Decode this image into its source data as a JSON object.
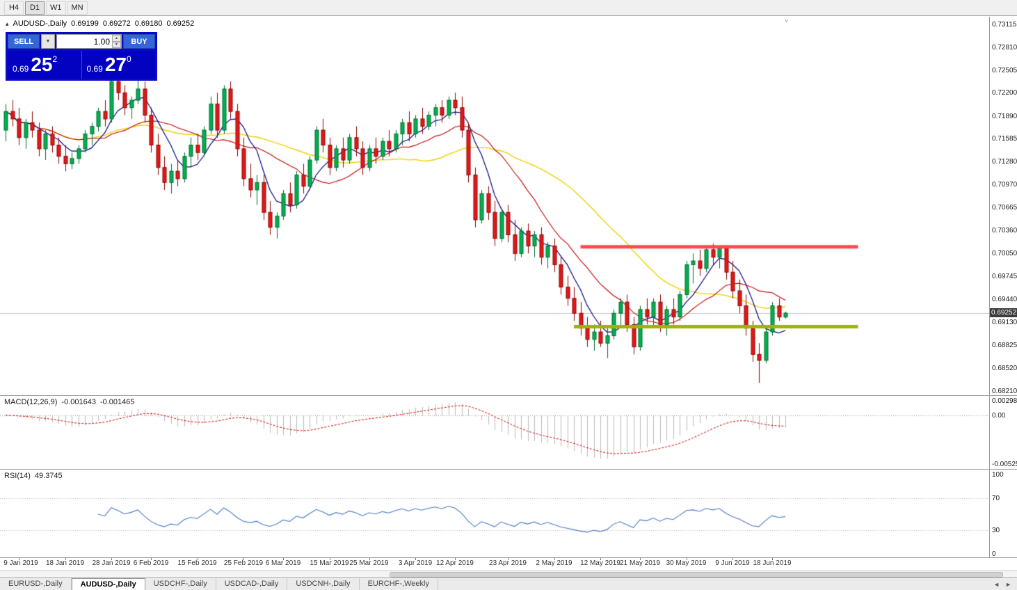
{
  "toolbar": {
    "timeframes": [
      {
        "label": "H4",
        "active": false
      },
      {
        "label": "D1",
        "active": true
      },
      {
        "label": "W1",
        "active": false
      },
      {
        "label": "MN",
        "active": false
      }
    ]
  },
  "chart_header": {
    "symbol_title": "AUDUSD-,Daily",
    "ohlc": {
      "open": "0.69199",
      "high": "0.69272",
      "low": "0.69180",
      "close": "0.69252"
    }
  },
  "trade_panel": {
    "sell_label": "SELL",
    "buy_label": "BUY",
    "volume": "1.00",
    "sell_price": {
      "small": "0.69",
      "big": "25",
      "sup": "2"
    },
    "buy_price": {
      "small": "0.69",
      "big": "27",
      "sup": "0"
    }
  },
  "price_scale": {
    "labels": [
      "0.73115",
      "0.72810",
      "0.72505",
      "0.72200",
      "0.71890",
      "0.71585",
      "0.71280",
      "0.70970",
      "0.70665",
      "0.70360",
      "0.70050",
      "0.69745",
      "0.69440",
      "0.69130",
      "0.68825",
      "0.68520",
      "0.68210"
    ],
    "current_price": "0.69252"
  },
  "indicators": {
    "macd": {
      "label": "MACD(12,26,9)",
      "value_main": "-0.001643",
      "value_signal": "-0.001465",
      "scale_top": "0.002984",
      "scale_zero": "0.00",
      "scale_bottom": "-0.005256"
    },
    "rsi": {
      "label": "RSI(14)",
      "value": "49.3745",
      "scale": [
        "100",
        "70",
        "30",
        "0"
      ]
    }
  },
  "bottom_tabs": {
    "tabs": [
      {
        "label": "EURUSD-,Daily",
        "active": false
      },
      {
        "label": "AUDUSD-,Daily",
        "active": true
      },
      {
        "label": "USDCHF-,Daily",
        "active": false
      },
      {
        "label": "USDCAD-,Daily",
        "active": false
      },
      {
        "label": "USDCNH-,Daily",
        "active": false
      },
      {
        "label": "EURCHF-,Weekly",
        "active": false
      }
    ]
  },
  "icons": {
    "collapse_arrow": "▴",
    "dropdown_arrow": "▼",
    "spinner_up": "▲",
    "spinner_down": "▼",
    "scroll_caret": "˅",
    "tab_scroll_left": "◄",
    "tab_scroll_right": "►"
  },
  "chart_data": {
    "type": "candlestick",
    "symbol": "AUDUSD",
    "timeframe": "Daily",
    "price_range": {
      "top": 0.73115,
      "bottom": 0.6821
    },
    "colors": {
      "up_fill": "#00b050",
      "up_border": "#006b2d",
      "down_fill": "#e31818",
      "down_border": "#8f0000"
    },
    "bid_line": {
      "price": 0.69252,
      "color": "#c6c6c6"
    },
    "hlines": [
      {
        "name": "resistance-line",
        "price": 0.7014,
        "color": "#ff4a4a",
        "width": 5,
        "from_index": 87,
        "to_index": 129
      },
      {
        "name": "support-line",
        "price": 0.6907,
        "color": "#9fb400",
        "width": 5,
        "from_index": 86,
        "to_index": 129
      }
    ],
    "moving_averages": [
      {
        "period": 30,
        "color": "#efcf00",
        "width": 1.4
      },
      {
        "period": 14,
        "color": "#c00000",
        "width": 1.1
      },
      {
        "period": 6,
        "color": "#000080",
        "width": 1.2
      }
    ],
    "macd": {
      "fast": 12,
      "slow": 26,
      "signal": 9,
      "histogram_color": "#b9b9b9",
      "signal_color": "#cf0000"
    },
    "rsi": {
      "period": 14,
      "levels": [
        70,
        30
      ],
      "color": "#4577c2"
    },
    "dates": [
      {
        "text": "9 Jan 2019",
        "index": 2
      },
      {
        "text": "18 Jan 2019",
        "index": 9
      },
      {
        "text": "28 Jan 2019",
        "index": 16
      },
      {
        "text": "6 Feb 2019",
        "index": 22
      },
      {
        "text": "15 Feb 2019",
        "index": 29
      },
      {
        "text": "25 Feb 2019",
        "index": 36
      },
      {
        "text": "6 Mar 2019",
        "index": 42
      },
      {
        "text": "15 Mar 2019",
        "index": 49
      },
      {
        "text": "25 Mar 2019",
        "index": 55
      },
      {
        "text": "3 Apr 2019",
        "index": 62
      },
      {
        "text": "12 Apr 2019",
        "index": 68
      },
      {
        "text": "23 Apr 2019",
        "index": 76
      },
      {
        "text": "2 May 2019",
        "index": 83
      },
      {
        "text": "12 May 2019",
        "index": 90
      },
      {
        "text": "21 May 2019",
        "index": 96
      },
      {
        "text": "30 May 2019",
        "index": 103
      },
      {
        "text": "9 Jun 2019",
        "index": 110
      },
      {
        "text": "18 Jun 2019",
        "index": 116
      }
    ],
    "candles": [
      [
        0.717,
        0.7205,
        0.7155,
        0.7195
      ],
      [
        0.7195,
        0.721,
        0.7175,
        0.7185
      ],
      [
        0.7185,
        0.72,
        0.715,
        0.716
      ],
      [
        0.716,
        0.7185,
        0.7145,
        0.718
      ],
      [
        0.718,
        0.7195,
        0.716,
        0.717
      ],
      [
        0.717,
        0.718,
        0.7135,
        0.7145
      ],
      [
        0.7145,
        0.717,
        0.713,
        0.7165
      ],
      [
        0.7165,
        0.7175,
        0.714,
        0.715
      ],
      [
        0.715,
        0.716,
        0.7125,
        0.7135
      ],
      [
        0.7135,
        0.715,
        0.7115,
        0.7125
      ],
      [
        0.7125,
        0.714,
        0.7118,
        0.7132
      ],
      [
        0.7132,
        0.715,
        0.7125,
        0.7145
      ],
      [
        0.7145,
        0.717,
        0.714,
        0.7165
      ],
      [
        0.7165,
        0.718,
        0.715,
        0.7175
      ],
      [
        0.7175,
        0.72,
        0.7168,
        0.7195
      ],
      [
        0.7195,
        0.721,
        0.7175,
        0.7185
      ],
      [
        0.7185,
        0.724,
        0.718,
        0.7235
      ],
      [
        0.7235,
        0.724,
        0.721,
        0.722
      ],
      [
        0.722,
        0.723,
        0.719,
        0.72
      ],
      [
        0.72,
        0.7215,
        0.7185,
        0.721
      ],
      [
        0.721,
        0.724,
        0.7205,
        0.7225
      ],
      [
        0.7225,
        0.7235,
        0.718,
        0.719
      ],
      [
        0.719,
        0.72,
        0.714,
        0.715
      ],
      [
        0.715,
        0.7165,
        0.711,
        0.712
      ],
      [
        0.712,
        0.7135,
        0.709,
        0.71
      ],
      [
        0.71,
        0.7125,
        0.7085,
        0.7115
      ],
      [
        0.7115,
        0.713,
        0.7095,
        0.7105
      ],
      [
        0.7105,
        0.714,
        0.71,
        0.7135
      ],
      [
        0.7135,
        0.716,
        0.712,
        0.715
      ],
      [
        0.715,
        0.7165,
        0.713,
        0.714
      ],
      [
        0.714,
        0.7175,
        0.7135,
        0.717
      ],
      [
        0.717,
        0.7215,
        0.7165,
        0.7205
      ],
      [
        0.7205,
        0.722,
        0.716,
        0.717
      ],
      [
        0.717,
        0.723,
        0.7165,
        0.7225
      ],
      [
        0.7225,
        0.7235,
        0.7185,
        0.7195
      ],
      [
        0.7195,
        0.7205,
        0.7135,
        0.7145
      ],
      [
        0.7145,
        0.716,
        0.7095,
        0.7105
      ],
      [
        0.7105,
        0.7125,
        0.708,
        0.709
      ],
      [
        0.709,
        0.711,
        0.707,
        0.71
      ],
      [
        0.71,
        0.711,
        0.705,
        0.706
      ],
      [
        0.706,
        0.7075,
        0.703,
        0.704
      ],
      [
        0.704,
        0.706,
        0.7025,
        0.7055
      ],
      [
        0.7055,
        0.709,
        0.705,
        0.7085
      ],
      [
        0.7085,
        0.71,
        0.706,
        0.707
      ],
      [
        0.707,
        0.7115,
        0.7065,
        0.711
      ],
      [
        0.711,
        0.7125,
        0.7085,
        0.7095
      ],
      [
        0.7095,
        0.7135,
        0.709,
        0.713
      ],
      [
        0.713,
        0.7175,
        0.7125,
        0.717
      ],
      [
        0.717,
        0.7185,
        0.714,
        0.715
      ],
      [
        0.715,
        0.716,
        0.711,
        0.712
      ],
      [
        0.712,
        0.715,
        0.7115,
        0.7145
      ],
      [
        0.7145,
        0.716,
        0.712,
        0.713
      ],
      [
        0.713,
        0.7165,
        0.7125,
        0.716
      ],
      [
        0.716,
        0.7175,
        0.7135,
        0.7145
      ],
      [
        0.7145,
        0.7155,
        0.711,
        0.712
      ],
      [
        0.712,
        0.715,
        0.7115,
        0.7145
      ],
      [
        0.7145,
        0.716,
        0.7125,
        0.7135
      ],
      [
        0.7135,
        0.716,
        0.713,
        0.7155
      ],
      [
        0.7155,
        0.717,
        0.7135,
        0.7145
      ],
      [
        0.7145,
        0.717,
        0.714,
        0.7165
      ],
      [
        0.7165,
        0.7185,
        0.715,
        0.718
      ],
      [
        0.718,
        0.7195,
        0.7155,
        0.7165
      ],
      [
        0.7165,
        0.719,
        0.716,
        0.7185
      ],
      [
        0.7185,
        0.72,
        0.7165,
        0.7175
      ],
      [
        0.7175,
        0.7195,
        0.717,
        0.719
      ],
      [
        0.719,
        0.7205,
        0.7175,
        0.72
      ],
      [
        0.72,
        0.721,
        0.718,
        0.719
      ],
      [
        0.719,
        0.7215,
        0.7185,
        0.721
      ],
      [
        0.721,
        0.722,
        0.719,
        0.72
      ],
      [
        0.72,
        0.7215,
        0.716,
        0.717
      ],
      [
        0.717,
        0.718,
        0.71,
        0.711
      ],
      [
        0.711,
        0.712,
        0.704,
        0.705
      ],
      [
        0.705,
        0.709,
        0.7045,
        0.7085
      ],
      [
        0.7085,
        0.7095,
        0.705,
        0.706
      ],
      [
        0.706,
        0.7075,
        0.7015,
        0.7025
      ],
      [
        0.7025,
        0.7065,
        0.702,
        0.706
      ],
      [
        0.706,
        0.707,
        0.702,
        0.703
      ],
      [
        0.703,
        0.705,
        0.6995,
        0.7005
      ],
      [
        0.7005,
        0.704,
        0.7,
        0.7035
      ],
      [
        0.7035,
        0.7045,
        0.7005,
        0.7015
      ],
      [
        0.7015,
        0.7035,
        0.7,
        0.703
      ],
      [
        0.703,
        0.704,
        0.699,
        0.7
      ],
      [
        0.7,
        0.702,
        0.6985,
        0.7015
      ],
      [
        0.7015,
        0.7025,
        0.698,
        0.699
      ],
      [
        0.699,
        0.7,
        0.695,
        0.696
      ],
      [
        0.696,
        0.6975,
        0.6935,
        0.6945
      ],
      [
        0.6945,
        0.696,
        0.6915,
        0.6925
      ],
      [
        0.6925,
        0.694,
        0.6895,
        0.6905
      ],
      [
        0.6905,
        0.692,
        0.688,
        0.689
      ],
      [
        0.689,
        0.691,
        0.6875,
        0.69
      ],
      [
        0.69,
        0.6915,
        0.688,
        0.6885
      ],
      [
        0.6885,
        0.6905,
        0.6865,
        0.6895
      ],
      [
        0.6895,
        0.693,
        0.689,
        0.6925
      ],
      [
        0.6925,
        0.6945,
        0.6905,
        0.694
      ],
      [
        0.694,
        0.695,
        0.69,
        0.691
      ],
      [
        0.691,
        0.692,
        0.687,
        0.688
      ],
      [
        0.688,
        0.6935,
        0.6875,
        0.693
      ],
      [
        0.693,
        0.6945,
        0.691,
        0.692
      ],
      [
        0.692,
        0.6945,
        0.6905,
        0.694
      ],
      [
        0.694,
        0.695,
        0.69,
        0.691
      ],
      [
        0.691,
        0.6935,
        0.6895,
        0.693
      ],
      [
        0.693,
        0.6945,
        0.691,
        0.692
      ],
      [
        0.692,
        0.6955,
        0.6915,
        0.695
      ],
      [
        0.695,
        0.6995,
        0.6945,
        0.699
      ],
      [
        0.699,
        0.7005,
        0.6965,
        0.6995
      ],
      [
        0.6995,
        0.701,
        0.6975,
        0.6985
      ],
      [
        0.6985,
        0.7015,
        0.698,
        0.701
      ],
      [
        0.701,
        0.7018,
        0.699,
        0.7
      ],
      [
        0.7,
        0.7015,
        0.6985,
        0.7012
      ],
      [
        0.7012,
        0.7015,
        0.697,
        0.698
      ],
      [
        0.698,
        0.6995,
        0.6945,
        0.6955
      ],
      [
        0.6955,
        0.697,
        0.6925,
        0.6935
      ],
      [
        0.6935,
        0.695,
        0.6895,
        0.6905
      ],
      [
        0.6905,
        0.6915,
        0.686,
        0.687
      ],
      [
        0.687,
        0.6885,
        0.6832,
        0.6862
      ],
      [
        0.6862,
        0.6905,
        0.6858,
        0.69
      ],
      [
        0.69,
        0.694,
        0.6895,
        0.6935
      ],
      [
        0.6935,
        0.6945,
        0.6915,
        0.692
      ],
      [
        0.69199,
        0.69272,
        0.6918,
        0.69252
      ]
    ]
  }
}
